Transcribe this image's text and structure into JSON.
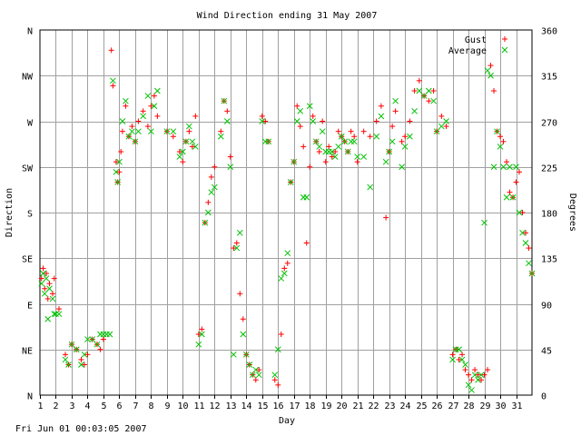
{
  "footer": {
    "timestamp": "Fri Jun 01 00:03:05 2007"
  },
  "colors": {
    "gust": "#ff0000",
    "average": "#00c000",
    "grid": "#a0a0a0",
    "axis": "#000000"
  },
  "chart_data": {
    "type": "scatter",
    "title": "Wind Direction ending 31 May 2007",
    "xlabel": "Day",
    "ylabel": "Direction",
    "ylabel_right": "Degrees",
    "xlim": [
      1,
      32
    ],
    "ylim": [
      0,
      360
    ],
    "grid": true,
    "legend_position": "top-right",
    "x_ticks": [
      "1",
      "2",
      "3",
      "4",
      "5",
      "6",
      "7",
      "8",
      "9",
      "10",
      "11",
      "12",
      "13",
      "14",
      "15",
      "16",
      "17",
      "18",
      "19",
      "20",
      "21",
      "22",
      "23",
      "24",
      "25",
      "26",
      "27",
      "28",
      "29",
      "30",
      "31"
    ],
    "y_ticks_left": [
      {
        "value": 0,
        "label": "N"
      },
      {
        "value": 45,
        "label": "NE"
      },
      {
        "value": 90,
        "label": "E"
      },
      {
        "value": 135,
        "label": "SE"
      },
      {
        "value": 180,
        "label": "S"
      },
      {
        "value": 225,
        "label": "SW"
      },
      {
        "value": 270,
        "label": "W"
      },
      {
        "value": 315,
        "label": "NW"
      },
      {
        "value": 360,
        "label": "N"
      }
    ],
    "y_ticks_right": [
      {
        "value": 0,
        "label": "0"
      },
      {
        "value": 45,
        "label": "45"
      },
      {
        "value": 90,
        "label": "90"
      },
      {
        "value": 135,
        "label": "135"
      },
      {
        "value": 180,
        "label": "180"
      },
      {
        "value": 225,
        "label": "225"
      },
      {
        "value": 270,
        "label": "270"
      },
      {
        "value": 315,
        "label": "315"
      },
      {
        "value": 360,
        "label": "360"
      }
    ],
    "series": [
      {
        "name": "Gust",
        "marker": "+",
        "color": "#ff0000",
        "points": [
          [
            1.1,
            115
          ],
          [
            1.2,
            125
          ],
          [
            1.3,
            105
          ],
          [
            1.4,
            120
          ],
          [
            1.5,
            95
          ],
          [
            1.6,
            110
          ],
          [
            1.8,
            100
          ],
          [
            1.9,
            115
          ],
          [
            2.2,
            85
          ],
          [
            2.6,
            40
          ],
          [
            2.8,
            30
          ],
          [
            3.0,
            50
          ],
          [
            3.3,
            45
          ],
          [
            3.6,
            35
          ],
          [
            3.8,
            30
          ],
          [
            4.0,
            40
          ],
          [
            4.3,
            55
          ],
          [
            4.6,
            50
          ],
          [
            4.8,
            45
          ],
          [
            5.0,
            55
          ],
          [
            5.5,
            340
          ],
          [
            5.6,
            305
          ],
          [
            5.8,
            230
          ],
          [
            5.9,
            210
          ],
          [
            6.0,
            220
          ],
          [
            6.1,
            240
          ],
          [
            6.2,
            260
          ],
          [
            6.4,
            285
          ],
          [
            6.6,
            255
          ],
          [
            6.8,
            265
          ],
          [
            7.0,
            250
          ],
          [
            7.2,
            270
          ],
          [
            7.5,
            280
          ],
          [
            7.8,
            265
          ],
          [
            8.0,
            285
          ],
          [
            8.2,
            295
          ],
          [
            8.4,
            275
          ],
          [
            9.0,
            260
          ],
          [
            9.4,
            255
          ],
          [
            9.8,
            240
          ],
          [
            10.0,
            230
          ],
          [
            10.2,
            250
          ],
          [
            10.4,
            260
          ],
          [
            10.6,
            245
          ],
          [
            10.8,
            275
          ],
          [
            11.0,
            60
          ],
          [
            11.2,
            65
          ],
          [
            11.4,
            170
          ],
          [
            11.6,
            190
          ],
          [
            11.8,
            215
          ],
          [
            12.0,
            225
          ],
          [
            12.4,
            260
          ],
          [
            12.6,
            290
          ],
          [
            12.8,
            280
          ],
          [
            13.0,
            235
          ],
          [
            13.2,
            145
          ],
          [
            13.4,
            150
          ],
          [
            13.6,
            100
          ],
          [
            13.8,
            75
          ],
          [
            14.0,
            40
          ],
          [
            14.2,
            30
          ],
          [
            14.4,
            20
          ],
          [
            14.6,
            15
          ],
          [
            14.8,
            25
          ],
          [
            15.0,
            275
          ],
          [
            15.2,
            270
          ],
          [
            15.4,
            250
          ],
          [
            15.8,
            15
          ],
          [
            16.0,
            10
          ],
          [
            16.2,
            60
          ],
          [
            16.4,
            125
          ],
          [
            16.6,
            130
          ],
          [
            16.8,
            210
          ],
          [
            17.0,
            230
          ],
          [
            17.2,
            285
          ],
          [
            17.4,
            265
          ],
          [
            17.6,
            245
          ],
          [
            17.8,
            150
          ],
          [
            18.0,
            225
          ],
          [
            18.2,
            275
          ],
          [
            18.4,
            250
          ],
          [
            18.6,
            240
          ],
          [
            18.8,
            270
          ],
          [
            19.0,
            230
          ],
          [
            19.2,
            245
          ],
          [
            19.4,
            235
          ],
          [
            19.6,
            240
          ],
          [
            19.8,
            260
          ],
          [
            20.0,
            255
          ],
          [
            20.2,
            250
          ],
          [
            20.4,
            240
          ],
          [
            20.6,
            260
          ],
          [
            20.8,
            255
          ],
          [
            21.0,
            230
          ],
          [
            21.4,
            260
          ],
          [
            21.8,
            255
          ],
          [
            22.2,
            270
          ],
          [
            22.5,
            285
          ],
          [
            22.8,
            175
          ],
          [
            23.0,
            240
          ],
          [
            23.2,
            265
          ],
          [
            23.4,
            280
          ],
          [
            23.8,
            250
          ],
          [
            24.0,
            255
          ],
          [
            24.3,
            270
          ],
          [
            24.6,
            300
          ],
          [
            24.9,
            310
          ],
          [
            25.2,
            295
          ],
          [
            25.5,
            290
          ],
          [
            25.8,
            300
          ],
          [
            26.0,
            260
          ],
          [
            26.3,
            275
          ],
          [
            26.6,
            265
          ],
          [
            27.0,
            40
          ],
          [
            27.2,
            45
          ],
          [
            27.4,
            35
          ],
          [
            27.6,
            40
          ],
          [
            27.8,
            25
          ],
          [
            28.0,
            20
          ],
          [
            28.2,
            15
          ],
          [
            28.4,
            25
          ],
          [
            28.6,
            20
          ],
          [
            28.8,
            15
          ],
          [
            29.0,
            20
          ],
          [
            29.2,
            25
          ],
          [
            29.4,
            325
          ],
          [
            29.6,
            300
          ],
          [
            29.8,
            260
          ],
          [
            30.0,
            255
          ],
          [
            30.2,
            250
          ],
          [
            30.4,
            230
          ],
          [
            30.6,
            200
          ],
          [
            30.8,
            195
          ],
          [
            31.0,
            210
          ],
          [
            31.2,
            220
          ],
          [
            31.4,
            180
          ],
          [
            31.6,
            160
          ],
          [
            31.8,
            145
          ],
          [
            32.0,
            120
          ]
        ]
      },
      {
        "name": "Average",
        "marker": "x",
        "color": "#00c000",
        "points": [
          [
            1.1,
            110
          ],
          [
            1.2,
            120
          ],
          [
            1.3,
            100
          ],
          [
            1.4,
            115
          ],
          [
            1.5,
            75
          ],
          [
            1.6,
            105
          ],
          [
            1.8,
            95
          ],
          [
            1.9,
            80
          ],
          [
            2.0,
            80
          ],
          [
            2.2,
            80
          ],
          [
            2.6,
            35
          ],
          [
            2.8,
            30
          ],
          [
            3.0,
            50
          ],
          [
            3.3,
            45
          ],
          [
            3.6,
            30
          ],
          [
            3.8,
            40
          ],
          [
            4.0,
            55
          ],
          [
            4.3,
            55
          ],
          [
            4.6,
            50
          ],
          [
            4.8,
            60
          ],
          [
            5.0,
            60
          ],
          [
            5.2,
            60
          ],
          [
            5.4,
            60
          ],
          [
            5.6,
            310
          ],
          [
            5.8,
            220
          ],
          [
            5.9,
            210
          ],
          [
            6.0,
            230
          ],
          [
            6.2,
            270
          ],
          [
            6.4,
            290
          ],
          [
            6.6,
            255
          ],
          [
            6.8,
            260
          ],
          [
            7.0,
            250
          ],
          [
            7.2,
            260
          ],
          [
            7.5,
            275
          ],
          [
            7.8,
            295
          ],
          [
            8.0,
            260
          ],
          [
            8.2,
            285
          ],
          [
            8.4,
            300
          ],
          [
            9.0,
            260
          ],
          [
            9.4,
            260
          ],
          [
            9.8,
            235
          ],
          [
            10.0,
            240
          ],
          [
            10.2,
            250
          ],
          [
            10.4,
            265
          ],
          [
            10.6,
            250
          ],
          [
            10.8,
            245
          ],
          [
            11.0,
            50
          ],
          [
            11.2,
            60
          ],
          [
            11.4,
            170
          ],
          [
            11.6,
            180
          ],
          [
            11.8,
            200
          ],
          [
            12.0,
            205
          ],
          [
            12.4,
            255
          ],
          [
            12.6,
            290
          ],
          [
            12.8,
            270
          ],
          [
            13.0,
            225
          ],
          [
            13.2,
            40
          ],
          [
            13.4,
            145
          ],
          [
            13.6,
            160
          ],
          [
            13.8,
            60
          ],
          [
            14.0,
            40
          ],
          [
            14.2,
            30
          ],
          [
            14.4,
            20
          ],
          [
            14.6,
            25
          ],
          [
            14.8,
            20
          ],
          [
            15.0,
            270
          ],
          [
            15.2,
            250
          ],
          [
            15.4,
            250
          ],
          [
            15.8,
            20
          ],
          [
            16.0,
            45
          ],
          [
            16.2,
            115
          ],
          [
            16.4,
            120
          ],
          [
            16.6,
            140
          ],
          [
            16.8,
            210
          ],
          [
            17.0,
            230
          ],
          [
            17.2,
            270
          ],
          [
            17.4,
            280
          ],
          [
            17.6,
            195
          ],
          [
            17.8,
            195
          ],
          [
            18.0,
            285
          ],
          [
            18.2,
            270
          ],
          [
            18.4,
            250
          ],
          [
            18.6,
            245
          ],
          [
            18.8,
            260
          ],
          [
            19.0,
            240
          ],
          [
            19.2,
            240
          ],
          [
            19.4,
            240
          ],
          [
            19.6,
            235
          ],
          [
            19.8,
            245
          ],
          [
            20.0,
            255
          ],
          [
            20.2,
            250
          ],
          [
            20.4,
            240
          ],
          [
            20.6,
            250
          ],
          [
            20.8,
            250
          ],
          [
            21.0,
            235
          ],
          [
            21.4,
            235
          ],
          [
            21.8,
            205
          ],
          [
            22.2,
            255
          ],
          [
            22.5,
            275
          ],
          [
            22.8,
            230
          ],
          [
            23.0,
            240
          ],
          [
            23.2,
            250
          ],
          [
            23.4,
            290
          ],
          [
            23.8,
            225
          ],
          [
            24.0,
            245
          ],
          [
            24.3,
            255
          ],
          [
            24.6,
            280
          ],
          [
            24.9,
            300
          ],
          [
            25.2,
            295
          ],
          [
            25.5,
            300
          ],
          [
            25.8,
            290
          ],
          [
            26.0,
            260
          ],
          [
            26.3,
            265
          ],
          [
            26.6,
            270
          ],
          [
            27.0,
            35
          ],
          [
            27.2,
            45
          ],
          [
            27.4,
            45
          ],
          [
            27.6,
            35
          ],
          [
            27.8,
            30
          ],
          [
            28.0,
            10
          ],
          [
            28.2,
            5
          ],
          [
            28.4,
            20
          ],
          [
            28.6,
            15
          ],
          [
            28.8,
            20
          ],
          [
            29.0,
            170
          ],
          [
            29.2,
            320
          ],
          [
            29.4,
            315
          ],
          [
            29.6,
            225
          ],
          [
            29.8,
            260
          ],
          [
            30.0,
            245
          ],
          [
            30.2,
            225
          ],
          [
            30.4,
            195
          ],
          [
            30.6,
            225
          ],
          [
            30.8,
            195
          ],
          [
            31.0,
            225
          ],
          [
            31.2,
            180
          ],
          [
            31.4,
            160
          ],
          [
            31.6,
            150
          ],
          [
            31.8,
            130
          ],
          [
            32.0,
            120
          ]
        ]
      }
    ]
  }
}
